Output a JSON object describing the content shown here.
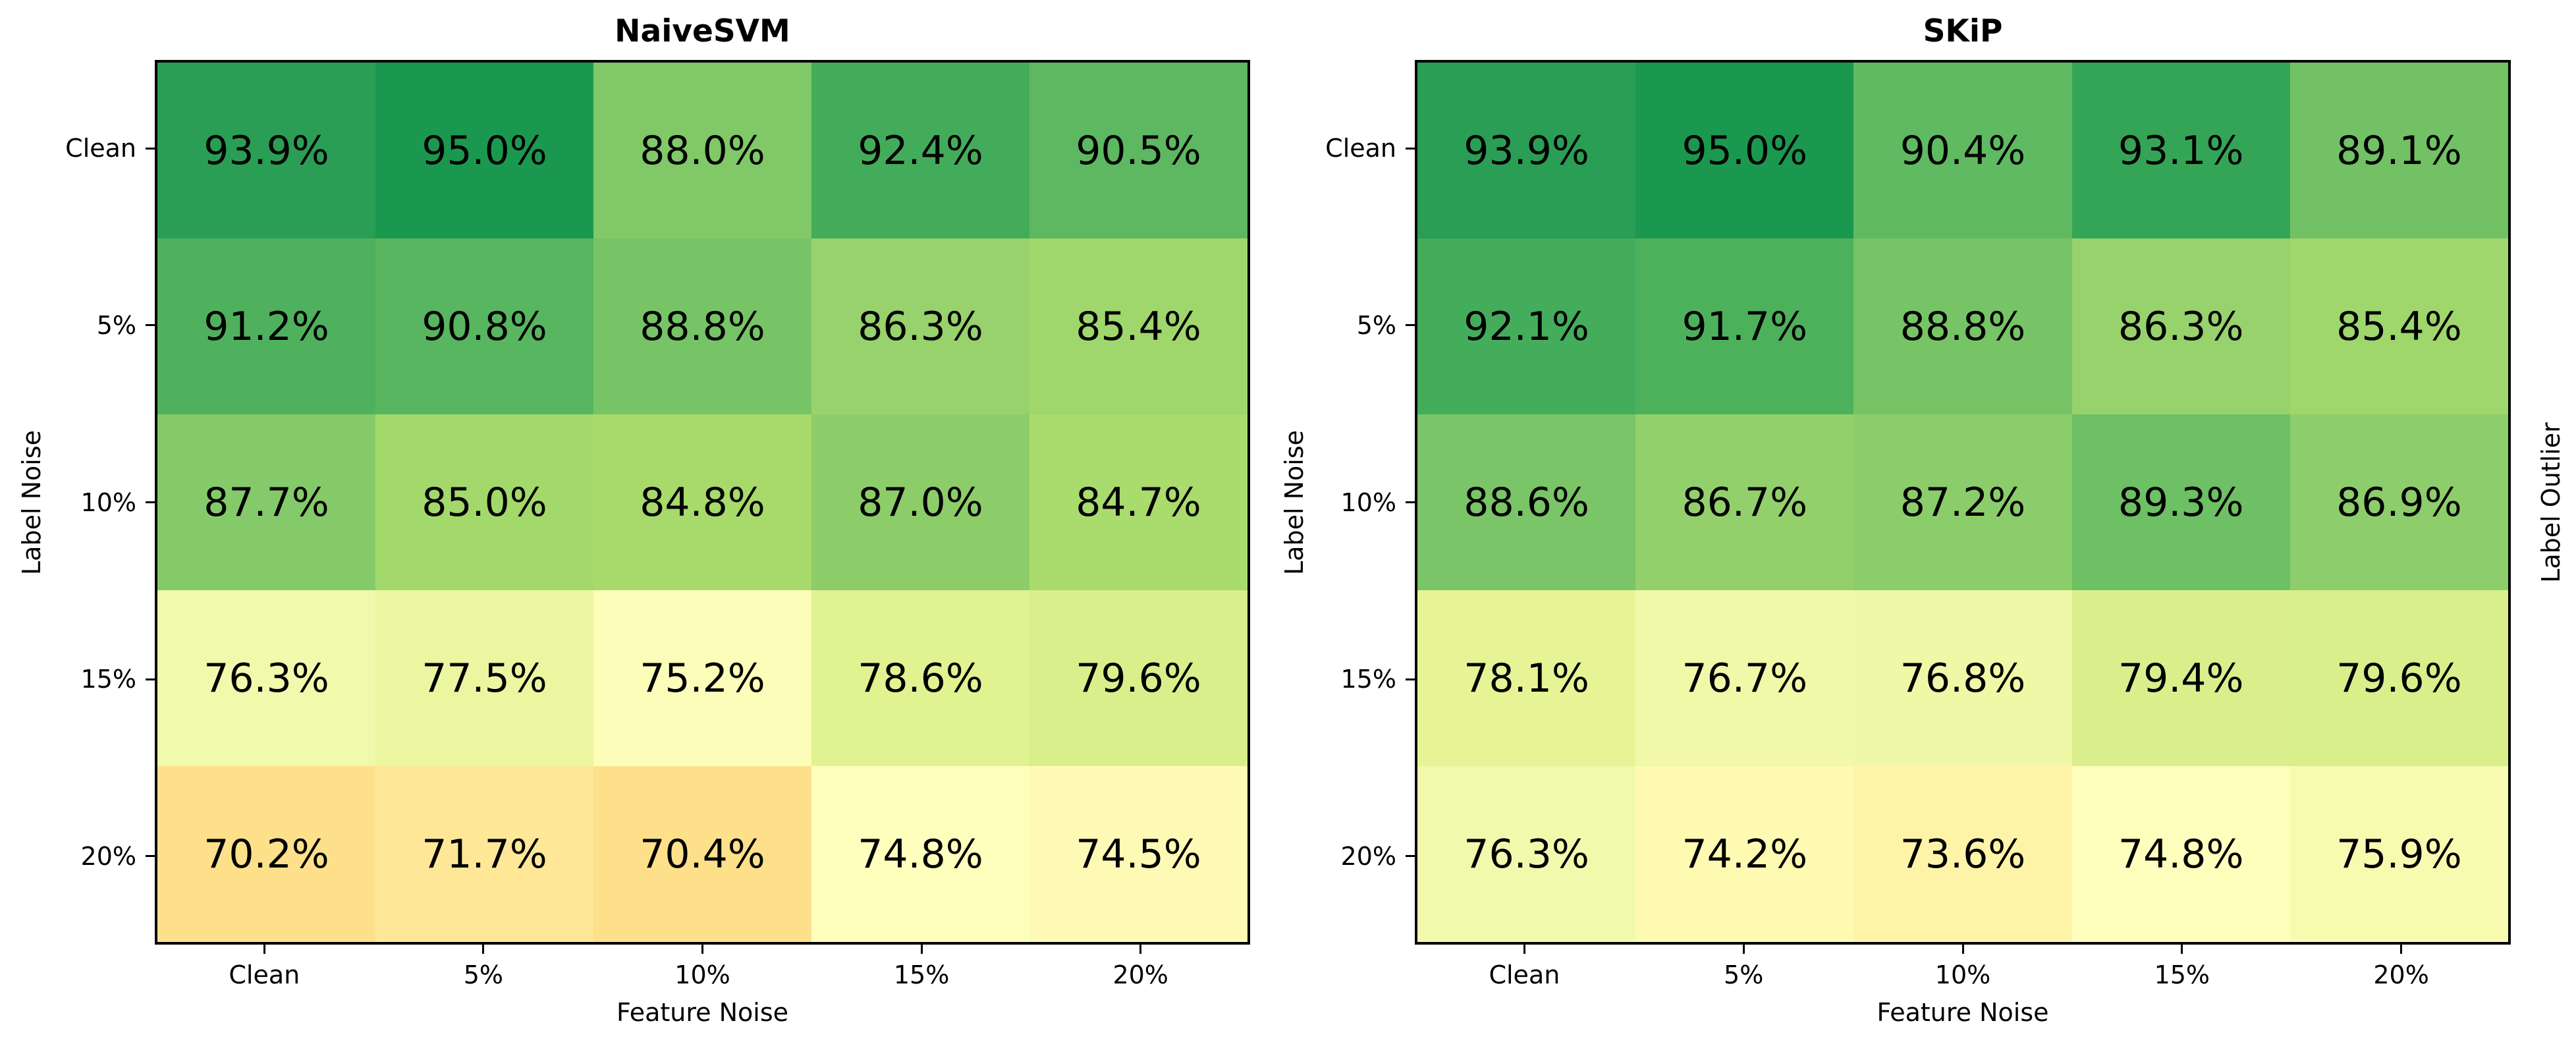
{
  "figure": {
    "right_label": "Label Outlier"
  },
  "panels": [
    {
      "title": "NaiveSVM",
      "xlabel": "Feature Noise",
      "ylabel": "Label Noise",
      "xticks": [
        "Clean",
        "5%",
        "10%",
        "15%",
        "20%"
      ],
      "yticks": [
        "Clean",
        "5%",
        "10%",
        "15%",
        "20%"
      ],
      "cells": [
        [
          {
            "text": "93.9%",
            "color": "#2a9e55"
          },
          {
            "text": "95.0%",
            "color": "#1b984f"
          },
          {
            "text": "88.0%",
            "color": "#80c868"
          },
          {
            "text": "92.4%",
            "color": "#42ac5a"
          },
          {
            "text": "90.5%",
            "color": "#5db861"
          }
        ],
        [
          {
            "text": "91.2%",
            "color": "#4fb15d"
          },
          {
            "text": "90.8%",
            "color": "#57b65f"
          },
          {
            "text": "88.8%",
            "color": "#76c466"
          },
          {
            "text": "86.3%",
            "color": "#97d26c"
          },
          {
            "text": "85.4%",
            "color": "#9fd76c"
          }
        ],
        [
          {
            "text": "87.7%",
            "color": "#85ca6a"
          },
          {
            "text": "85.0%",
            "color": "#a3d96a"
          },
          {
            "text": "84.8%",
            "color": "#a7da6b"
          },
          {
            "text": "87.0%",
            "color": "#8ccd69"
          },
          {
            "text": "84.7%",
            "color": "#a9db6d"
          }
        ],
        [
          {
            "text": "76.3%",
            "color": "#f1f9ac"
          },
          {
            "text": "77.5%",
            "color": "#ebf6a0"
          },
          {
            "text": "75.2%",
            "color": "#fbfdb9"
          },
          {
            "text": "78.6%",
            "color": "#e1f290"
          },
          {
            "text": "79.6%",
            "color": "#d9ef8b"
          }
        ],
        [
          {
            "text": "70.2%",
            "color": "#fee08b"
          },
          {
            "text": "71.7%",
            "color": "#fee898"
          },
          {
            "text": "70.4%",
            "color": "#fee08b"
          },
          {
            "text": "74.8%",
            "color": "#fefebd"
          },
          {
            "text": "74.5%",
            "color": "#fefab5"
          }
        ]
      ]
    },
    {
      "title": "SKiP",
      "xlabel": "Feature Noise",
      "ylabel": "Label Noise",
      "xticks": [
        "Clean",
        "5%",
        "10%",
        "15%",
        "20%"
      ],
      "yticks": [
        "Clean",
        "5%",
        "10%",
        "15%",
        "20%"
      ],
      "cells": [
        [
          {
            "text": "93.9%",
            "color": "#2a9e55"
          },
          {
            "text": "95.0%",
            "color": "#1b984f"
          },
          {
            "text": "90.4%",
            "color": "#5fba61"
          },
          {
            "text": "93.1%",
            "color": "#34a556"
          },
          {
            "text": "89.1%",
            "color": "#72c165"
          }
        ],
        [
          {
            "text": "92.1%",
            "color": "#44ad5b"
          },
          {
            "text": "91.7%",
            "color": "#4db15c"
          },
          {
            "text": "88.8%",
            "color": "#76c466"
          },
          {
            "text": "86.3%",
            "color": "#97d26c"
          },
          {
            "text": "85.4%",
            "color": "#9fd76c"
          }
        ],
        [
          {
            "text": "88.6%",
            "color": "#7ac567"
          },
          {
            "text": "86.7%",
            "color": "#93d06c"
          },
          {
            "text": "87.2%",
            "color": "#8bcd6a"
          },
          {
            "text": "89.3%",
            "color": "#6dc063"
          },
          {
            "text": "86.9%",
            "color": "#8ecd6b"
          }
        ],
        [
          {
            "text": "78.1%",
            "color": "#e6f495"
          },
          {
            "text": "76.7%",
            "color": "#f0f9a8"
          },
          {
            "text": "76.8%",
            "color": "#eef8a7"
          },
          {
            "text": "79.4%",
            "color": "#daef8c"
          },
          {
            "text": "79.6%",
            "color": "#d9ef8b"
          }
        ],
        [
          {
            "text": "76.3%",
            "color": "#f1f9ac"
          },
          {
            "text": "74.2%",
            "color": "#fefab2"
          },
          {
            "text": "73.6%",
            "color": "#fef4a8"
          },
          {
            "text": "74.8%",
            "color": "#fefebd"
          },
          {
            "text": "75.9%",
            "color": "#f6fbb0"
          }
        ]
      ]
    }
  ],
  "chart_data": [
    {
      "type": "heatmap",
      "title": "NaiveSVM",
      "xlabel": "Feature Noise",
      "ylabel": "Label Noise",
      "x": [
        "Clean",
        "5%",
        "10%",
        "15%",
        "20%"
      ],
      "y": [
        "Clean",
        "5%",
        "10%",
        "15%",
        "20%"
      ],
      "values": [
        [
          93.9,
          95.0,
          88.0,
          92.4,
          90.5
        ],
        [
          91.2,
          90.8,
          88.8,
          86.3,
          85.4
        ],
        [
          87.7,
          85.0,
          84.8,
          87.0,
          84.7
        ],
        [
          76.3,
          77.5,
          75.2,
          78.6,
          79.6
        ],
        [
          70.2,
          71.7,
          70.4,
          74.8,
          74.5
        ]
      ],
      "unit": "%",
      "colormap": "RdYlGn"
    },
    {
      "type": "heatmap",
      "title": "SKiP",
      "xlabel": "Feature Noise",
      "ylabel": "Label Noise",
      "secondary_ylabel": "Label Outlier",
      "x": [
        "Clean",
        "5%",
        "10%",
        "15%",
        "20%"
      ],
      "y": [
        "Clean",
        "5%",
        "10%",
        "15%",
        "20%"
      ],
      "values": [
        [
          93.9,
          95.0,
          90.4,
          93.1,
          89.1
        ],
        [
          92.1,
          91.7,
          88.8,
          86.3,
          85.4
        ],
        [
          88.6,
          86.7,
          87.2,
          89.3,
          86.9
        ],
        [
          78.1,
          76.7,
          76.8,
          79.4,
          79.6
        ],
        [
          76.3,
          74.2,
          73.6,
          74.8,
          75.9
        ]
      ],
      "unit": "%",
      "colormap": "RdYlGn"
    }
  ]
}
